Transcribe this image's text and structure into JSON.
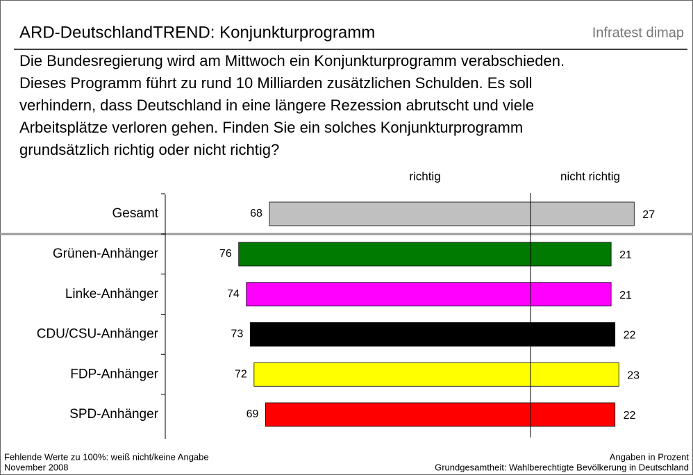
{
  "chart_data": {
    "type": "diverging_bar",
    "title": "ARD-DeutschlandTREND: Konjunkturprogramm",
    "source": "Infratest dimap",
    "subtitle": [
      "Die Bundesregierung wird am Mittwoch ein Konjunkturprogramm verabschieden.",
      "Dieses Programm führt zu rund 10 Milliarden zusätzlichen Schulden. Es soll",
      "verhindern, dass Deutschland in eine längere Rezession abrutscht und viele",
      "Arbeitsplätze verloren gehen. Finden Sie ein solches Konjunkturprogramm",
      "grundsätzlich richtig oder nicht richtig?"
    ],
    "categories": [
      "Gesamt",
      "Grünen-Anhänger",
      "Linke-Anhänger",
      "CDU/CSU-Anhänger",
      "FDP-Anhänger",
      "SPD-Anhänger"
    ],
    "colors": [
      "#c0c0c0",
      "#007a00",
      "#ff00ff",
      "#000000",
      "#ffff00",
      "#ff0000"
    ],
    "series": [
      {
        "name": "richtig",
        "values": [
          68,
          76,
          74,
          73,
          72,
          69
        ]
      },
      {
        "name": "nicht richtig",
        "values": [
          27,
          21,
          21,
          22,
          23,
          22
        ]
      }
    ],
    "footnotes_left": [
      "Fehlende Werte zu 100%: weiß nicht/keine Angabe",
      "November 2008"
    ],
    "footnotes_right": [
      "Angaben in Prozent",
      "Grundgesamtheit: Wahlberechtigte Bevölkerung in Deutschland"
    ]
  }
}
